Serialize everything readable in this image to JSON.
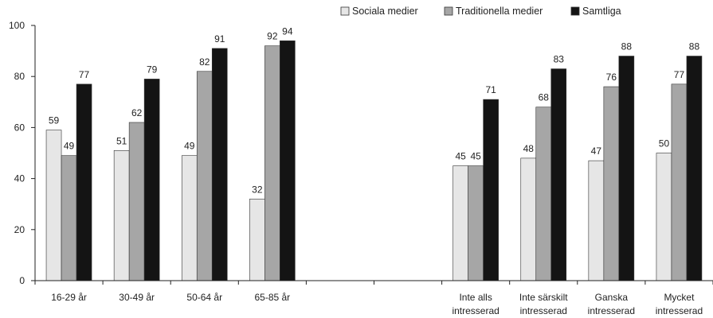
{
  "chart_data": {
    "type": "bar",
    "categories": [
      [
        "16-29 år"
      ],
      [
        "30-49 år"
      ],
      [
        "50-64 år"
      ],
      [
        "65-85 år"
      ],
      [
        ""
      ],
      [
        ""
      ],
      [
        "Inte alls",
        "intresserad"
      ],
      [
        "Inte särskilt",
        "intresserad"
      ],
      [
        "Ganska",
        "intresserad"
      ],
      [
        "Mycket",
        "intresserad"
      ]
    ],
    "series": [
      {
        "name": "Sociala medier",
        "color": "#e6e6e6",
        "values": [
          59,
          51,
          49,
          32,
          null,
          null,
          45,
          48,
          47,
          50
        ]
      },
      {
        "name": "Traditionella medier",
        "color": "#a6a6a6",
        "values": [
          49,
          62,
          82,
          92,
          null,
          null,
          45,
          68,
          76,
          77
        ]
      },
      {
        "name": "Samtliga",
        "color": "#141414",
        "values": [
          77,
          79,
          91,
          94,
          null,
          null,
          71,
          83,
          88,
          88
        ]
      }
    ],
    "ylim": [
      0,
      100
    ],
    "yticks": [
      0,
      20,
      40,
      60,
      80,
      100
    ],
    "grid": false,
    "legend_position": "top-right"
  }
}
